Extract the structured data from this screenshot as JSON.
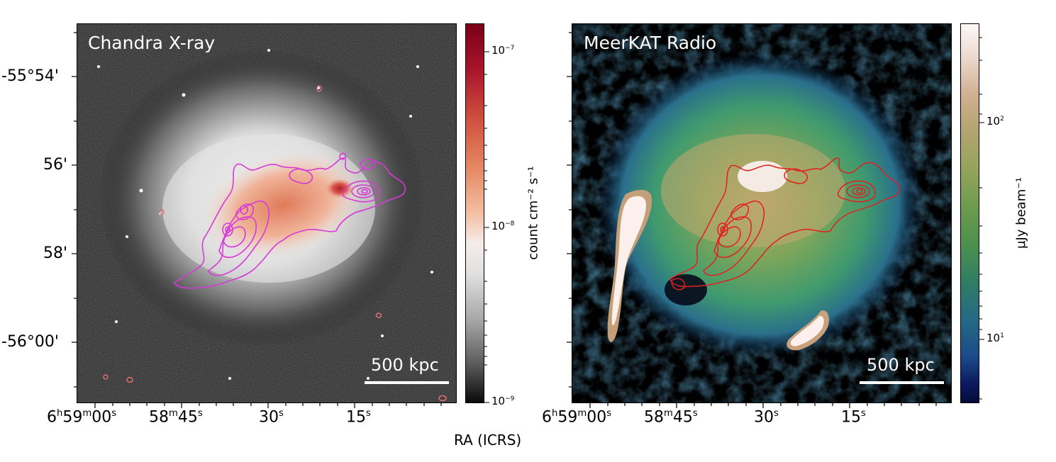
{
  "left_panel": {
    "title": "Chandra X-ray",
    "scale_bar_label": "500 kpc",
    "colorbar": {
      "label": "count cm⁻² s⁻¹",
      "ticks": [
        {
          "base": "10",
          "exp": "−7"
        },
        {
          "base": "10",
          "exp": "−8"
        },
        {
          "base": "10",
          "exp": "−9"
        }
      ]
    },
    "contour_color": "#d63ad6"
  },
  "right_panel": {
    "title": "MeerKAT Radio",
    "scale_bar_label": "500 kpc",
    "colorbar": {
      "label": "μJy beam⁻¹",
      "ticks": [
        {
          "base": "10",
          "exp": "2"
        },
        {
          "base": "10",
          "exp": "1"
        }
      ]
    },
    "contour_color": "#e02020"
  },
  "dec_ticks": [
    "-55°54'",
    "56'",
    "58'",
    "-56°00'"
  ],
  "ra_ticks": [
    {
      "h": "6",
      "hs": "h",
      "m": "59",
      "ms": "m",
      "s": "00",
      "ss": "s"
    },
    {
      "m": "58",
      "ms": "m",
      "s": "45",
      "ss": "s"
    },
    {
      "s": "30",
      "ss": "s"
    },
    {
      "s": "15",
      "ss": "s"
    }
  ],
  "xaxis_label": "RA (ICRS)"
}
